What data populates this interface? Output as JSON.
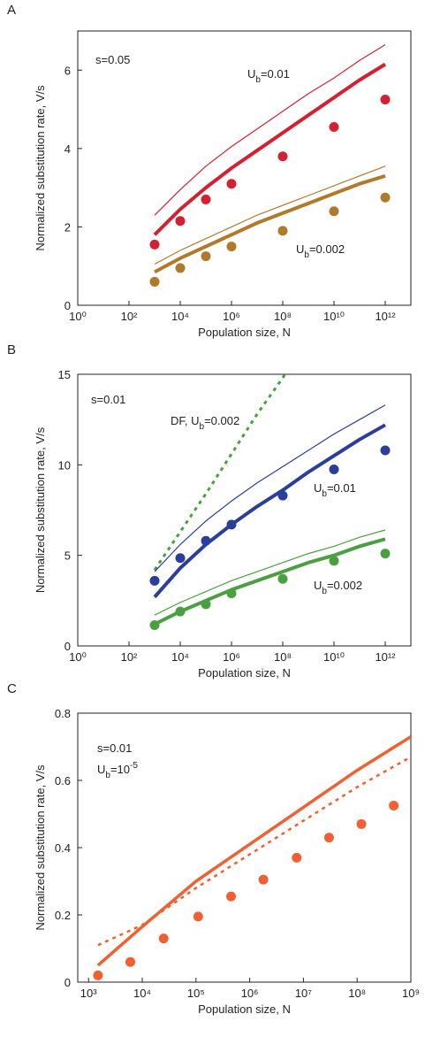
{
  "chart_data": [
    {
      "type": "line",
      "title": "A",
      "xlabel": "Population size, N",
      "ylabel": "Normalized substitution rate, V/s",
      "xscale": "log",
      "xlim": [
        1,
        10000000000000.0
      ],
      "ylim": [
        0,
        7
      ],
      "xticks": [
        {
          "value": 1,
          "label": "10⁰"
        },
        {
          "value": 100,
          "label": "10²"
        },
        {
          "value": 10000,
          "label": "10⁴"
        },
        {
          "value": 1000000,
          "label": "10⁶"
        },
        {
          "value": 100000000,
          "label": "10⁸"
        },
        {
          "value": 10000000000,
          "label": "10¹⁰"
        },
        {
          "value": 1000000000000,
          "label": "10¹²"
        }
      ],
      "yticks": [
        0,
        2,
        4,
        6
      ],
      "annotations": [
        {
          "parts": [
            {
              "t": "s=0.05"
            }
          ]
        },
        {
          "parts": [
            {
              "t": "U"
            },
            {
              "t": "b",
              "shift": "sub"
            },
            {
              "t": "=0.01"
            }
          ]
        },
        {
          "parts": [
            {
              "t": "U"
            },
            {
              "t": "b",
              "shift": "sub"
            },
            {
              "t": "=0.002"
            }
          ]
        }
      ],
      "series": [
        {
          "style": "line",
          "color": "#d42030",
          "width": 1.2,
          "x": [
            1000.0,
            10000.0,
            100000.0,
            1000000.0,
            10000000.0,
            100000000.0,
            1000000000.0,
            10000000000.0,
            100000000000.0,
            1000000000000.0
          ],
          "values": [
            2.3,
            2.95,
            3.55,
            4.05,
            4.5,
            4.95,
            5.4,
            5.8,
            6.25,
            6.65
          ]
        },
        {
          "style": "line",
          "color": "#d42030",
          "width": 4,
          "x": [
            1000.0,
            10000.0,
            100000.0,
            1000000.0,
            10000000.0,
            100000000.0,
            1000000000.0,
            10000000000.0,
            100000000000.0,
            1000000000000.0
          ],
          "values": [
            1.8,
            2.45,
            3.0,
            3.5,
            3.95,
            4.4,
            4.85,
            5.3,
            5.75,
            6.15
          ]
        },
        {
          "style": "points",
          "color": "#d42030",
          "x": [
            1000.0,
            10000.0,
            100000.0,
            1000000.0,
            100000000.0,
            10000000000.0,
            1000000000000.0
          ],
          "values": [
            1.55,
            2.15,
            2.7,
            3.1,
            3.8,
            4.55,
            5.25
          ]
        },
        {
          "style": "line",
          "color": "#b07a2a",
          "width": 1.2,
          "x": [
            1000.0,
            10000.0,
            100000.0,
            1000000.0,
            10000000.0,
            100000000.0,
            1000000000.0,
            10000000000.0,
            100000000000.0,
            1000000000000.0
          ],
          "values": [
            1.05,
            1.4,
            1.7,
            2.0,
            2.3,
            2.55,
            2.8,
            3.05,
            3.3,
            3.55
          ]
        },
        {
          "style": "line",
          "color": "#b07a2a",
          "width": 4,
          "x": [
            1000.0,
            10000.0,
            100000.0,
            1000000.0,
            10000000.0,
            100000000.0,
            1000000000.0,
            10000000000.0,
            100000000000.0,
            1000000000000.0
          ],
          "values": [
            0.85,
            1.2,
            1.5,
            1.8,
            2.1,
            2.35,
            2.6,
            2.85,
            3.1,
            3.3
          ]
        },
        {
          "style": "points",
          "color": "#b07a2a",
          "x": [
            1000.0,
            10000.0,
            100000.0,
            1000000.0,
            100000000.0,
            10000000000.0,
            1000000000000.0
          ],
          "values": [
            0.6,
            0.95,
            1.25,
            1.5,
            1.9,
            2.4,
            2.75
          ]
        }
      ]
    },
    {
      "type": "line",
      "title": "B",
      "xlabel": "Population size, N",
      "ylabel": "Normalized substitution rate, V/s",
      "xscale": "log",
      "xlim": [
        1,
        10000000000000.0
      ],
      "ylim": [
        0,
        15
      ],
      "xticks": [
        {
          "value": 1,
          "label": "10⁰"
        },
        {
          "value": 100,
          "label": "10²"
        },
        {
          "value": 10000,
          "label": "10⁴"
        },
        {
          "value": 1000000,
          "label": "10⁶"
        },
        {
          "value": 100000000,
          "label": "10⁸"
        },
        {
          "value": 10000000000,
          "label": "10¹⁰"
        },
        {
          "value": 1000000000000,
          "label": "10¹²"
        }
      ],
      "yticks": [
        0,
        5,
        10,
        15
      ],
      "annotations": [
        {
          "parts": [
            {
              "t": "s=0.01"
            }
          ]
        },
        {
          "parts": [
            {
              "t": "DF, U"
            },
            {
              "t": "b",
              "shift": "sub"
            },
            {
              "t": "=0.002"
            }
          ]
        },
        {
          "parts": [
            {
              "t": "U"
            },
            {
              "t": "b",
              "shift": "sub"
            },
            {
              "t": "=0.01"
            }
          ]
        },
        {
          "parts": [
            {
              "t": "U"
            },
            {
              "t": "b",
              "shift": "sub"
            },
            {
              "t": "=0.002"
            }
          ]
        }
      ],
      "series": [
        {
          "style": "line",
          "color": "#4aa040",
          "width": 3,
          "dash": true,
          "x": [
            1000.0,
            10000.0,
            100000.0,
            1000000.0,
            10000000.0,
            100000000.0,
            1000000000.0
          ],
          "values": [
            4.2,
            6.3,
            8.4,
            10.6,
            12.8,
            14.8,
            17.0
          ]
        },
        {
          "style": "line",
          "color": "#2a3e9c",
          "width": 1.2,
          "x": [
            1000.0,
            10000.0,
            100000.0,
            1000000.0,
            10000000.0,
            100000000.0,
            1000000000.0,
            10000000000.0,
            100000000000.0,
            1000000000000.0
          ],
          "values": [
            4.1,
            5.6,
            6.9,
            8.0,
            9.0,
            9.9,
            10.8,
            11.7,
            12.5,
            13.3
          ]
        },
        {
          "style": "line",
          "color": "#2a3e9c",
          "width": 4,
          "x": [
            1000.0,
            10000.0,
            100000.0,
            1000000.0,
            10000000.0,
            100000000.0,
            1000000000.0,
            10000000000.0,
            100000000000.0,
            1000000000000.0
          ],
          "values": [
            2.7,
            4.3,
            5.6,
            6.7,
            7.7,
            8.6,
            9.6,
            10.5,
            11.4,
            12.2
          ]
        },
        {
          "style": "points",
          "color": "#2a3e9c",
          "x": [
            1000.0,
            10000.0,
            100000.0,
            1000000.0,
            100000000.0,
            10000000000.0,
            1000000000000.0
          ],
          "values": [
            3.6,
            4.85,
            5.8,
            6.7,
            8.3,
            9.75,
            10.8
          ]
        },
        {
          "style": "line",
          "color": "#4aa040",
          "width": 1.2,
          "x": [
            1000.0,
            10000.0,
            100000.0,
            1000000.0,
            10000000.0,
            100000000.0,
            1000000000.0,
            10000000000.0,
            100000000000.0,
            1000000000000.0
          ],
          "values": [
            1.7,
            2.4,
            3.0,
            3.6,
            4.1,
            4.6,
            5.1,
            5.5,
            6.0,
            6.4
          ]
        },
        {
          "style": "line",
          "color": "#4aa040",
          "width": 4,
          "x": [
            1000.0,
            10000.0,
            100000.0,
            1000000.0,
            10000000.0,
            100000000.0,
            1000000000.0,
            10000000000.0,
            100000000000.0,
            1000000000000.0
          ],
          "values": [
            1.2,
            1.9,
            2.5,
            3.1,
            3.6,
            4.1,
            4.6,
            5.0,
            5.5,
            5.9
          ]
        },
        {
          "style": "points",
          "color": "#4aa040",
          "x": [
            1000.0,
            10000.0,
            100000.0,
            1000000.0,
            100000000.0,
            10000000000.0,
            1000000000000.0
          ],
          "values": [
            1.15,
            1.9,
            2.3,
            2.9,
            3.7,
            4.7,
            5.1
          ]
        }
      ]
    },
    {
      "type": "line",
      "title": "C",
      "xlabel": "Population size, N",
      "ylabel": "Normalized substitution rate, V/s",
      "xscale": "log",
      "xlim": [
        630,
        1000000000.0
      ],
      "ylim": [
        0,
        0.8
      ],
      "xticks": [
        {
          "value": 1000,
          "label": "10³"
        },
        {
          "value": 10000,
          "label": "10⁴"
        },
        {
          "value": 100000,
          "label": "10⁵"
        },
        {
          "value": 1000000,
          "label": "10⁶"
        },
        {
          "value": 10000000,
          "label": "10⁷"
        },
        {
          "value": 100000000,
          "label": "10⁸"
        },
        {
          "value": 1000000000,
          "label": "10⁹"
        }
      ],
      "yticks": [
        0,
        0.2,
        0.4,
        0.6,
        0.8
      ],
      "annotations": [
        {
          "parts": [
            {
              "t": "s=0.01"
            }
          ]
        },
        {
          "parts": [
            {
              "t": "U"
            },
            {
              "t": "b",
              "shift": "sub"
            },
            {
              "t": "=10"
            },
            {
              "t": "-5",
              "shift": "sup"
            }
          ]
        }
      ],
      "series": [
        {
          "style": "line",
          "color": "#f06030",
          "width": 3.5,
          "x": [
            1500,
            10000.0,
            100000.0,
            1000000.0,
            10000000.0,
            100000000.0,
            1000000000.0
          ],
          "values": [
            0.05,
            0.165,
            0.3,
            0.41,
            0.52,
            0.63,
            0.73
          ]
        },
        {
          "style": "line",
          "color": "#f06030",
          "width": 2.5,
          "dash": true,
          "x": [
            1500,
            10000.0,
            100000.0,
            1000000.0,
            10000000.0,
            100000000.0,
            1000000000.0
          ],
          "values": [
            0.11,
            0.17,
            0.28,
            0.38,
            0.48,
            0.58,
            0.67
          ]
        },
        {
          "style": "points",
          "color": "#f06030",
          "x": [
            1500,
            6000,
            25000,
            110000,
            450000,
            1800000,
            7500000,
            30000000,
            120000000,
            480000000
          ],
          "values": [
            0.02,
            0.06,
            0.13,
            0.195,
            0.255,
            0.305,
            0.37,
            0.43,
            0.47,
            0.525
          ]
        }
      ]
    }
  ]
}
